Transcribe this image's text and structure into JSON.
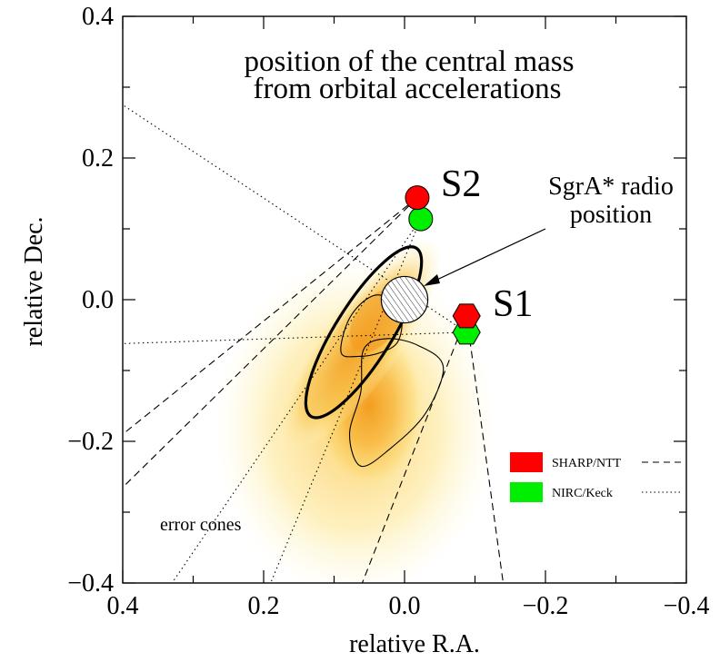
{
  "chart_data": {
    "type": "scatter",
    "title_line1": "position of the central mass",
    "title_line2": "from orbital accelerations",
    "xlabel": "relative R.A.",
    "ylabel": "relative Dec.",
    "xlim": [
      0.4,
      -0.4
    ],
    "ylim": [
      -0.4,
      0.4
    ],
    "x_ticks": [
      {
        "v": 0.4,
        "label": "0.4"
      },
      {
        "v": 0.2,
        "label": "0.2"
      },
      {
        "v": 0.0,
        "label": "0.0"
      },
      {
        "v": -0.2,
        "label": "−0.2"
      },
      {
        "v": -0.4,
        "label": "−0.4"
      }
    ],
    "y_ticks": [
      {
        "v": 0.4,
        "label": "0.4"
      },
      {
        "v": 0.2,
        "label": "0.2"
      },
      {
        "v": 0.0,
        "label": "0.0"
      },
      {
        "v": -0.2,
        "label": "−0.2"
      },
      {
        "v": -0.4,
        "label": "−0.4"
      }
    ],
    "minor_tick_step": 0.1,
    "colors": {
      "sharp": "#ff0000",
      "nirc": "#00ee00",
      "density_core": "#f5a623",
      "density_outer": "#fff6b0"
    },
    "stars": [
      {
        "name": "S2",
        "label": "S2",
        "sharp": [
          -0.018,
          0.144
        ],
        "nirc": [
          -0.023,
          0.114
        ],
        "marker": "circle"
      },
      {
        "name": "S1",
        "label": "S1",
        "sharp": [
          -0.088,
          -0.023
        ],
        "nirc": [
          -0.088,
          -0.046
        ],
        "marker": "hexagon"
      }
    ],
    "sgra": {
      "label_line1": "SgrA* radio",
      "label_line2": "position",
      "x": 0.0,
      "y": 0.0,
      "radius": 0.033
    },
    "legend": [
      {
        "label": "SHARP/NTT",
        "color": "#ff0000",
        "line": "dashed"
      },
      {
        "label": "NIRC/Keck",
        "color": "#00ee00",
        "line": "dotted"
      }
    ],
    "cones_label": "error cones",
    "dashed_cones": [
      [
        [
          -0.018,
          0.144
        ],
        [
          0.4,
          -0.19
        ]
      ],
      [
        [
          -0.018,
          0.144
        ],
        [
          0.4,
          -0.265
        ]
      ],
      [
        [
          -0.088,
          -0.023
        ],
        [
          0.06,
          -0.4
        ]
      ],
      [
        [
          -0.088,
          -0.023
        ],
        [
          -0.14,
          -0.4
        ]
      ]
    ],
    "dotted_cones": [
      [
        [
          -0.023,
          0.114
        ],
        [
          0.33,
          -0.4
        ]
      ],
      [
        [
          -0.023,
          0.114
        ],
        [
          0.19,
          -0.4
        ]
      ],
      [
        [
          -0.088,
          -0.046
        ],
        [
          0.4,
          0.275
        ]
      ],
      [
        [
          -0.088,
          -0.046
        ],
        [
          0.4,
          -0.062
        ]
      ]
    ],
    "contours": {
      "thick_ellipse": {
        "cx": 0.058,
        "cy": -0.046,
        "rx": 0.141,
        "ry": 0.04,
        "angle_deg": 58
      },
      "thin_large": [
        [
          0.058,
          -0.07
        ],
        [
          0.062,
          -0.13
        ],
        [
          0.078,
          -0.19
        ],
        [
          0.062,
          -0.235
        ],
        [
          0.02,
          -0.21
        ],
        [
          -0.03,
          -0.16
        ],
        [
          -0.055,
          -0.095
        ],
        [
          -0.02,
          -0.065
        ],
        [
          0.025,
          -0.055
        ]
      ],
      "thin_small": [
        [
          0.09,
          -0.075
        ],
        [
          0.08,
          -0.03
        ],
        [
          0.055,
          0.0
        ],
        [
          0.03,
          0.005
        ],
        [
          0.005,
          -0.025
        ],
        [
          0.01,
          -0.06
        ],
        [
          0.035,
          -0.075
        ],
        [
          0.065,
          -0.08
        ]
      ]
    }
  }
}
